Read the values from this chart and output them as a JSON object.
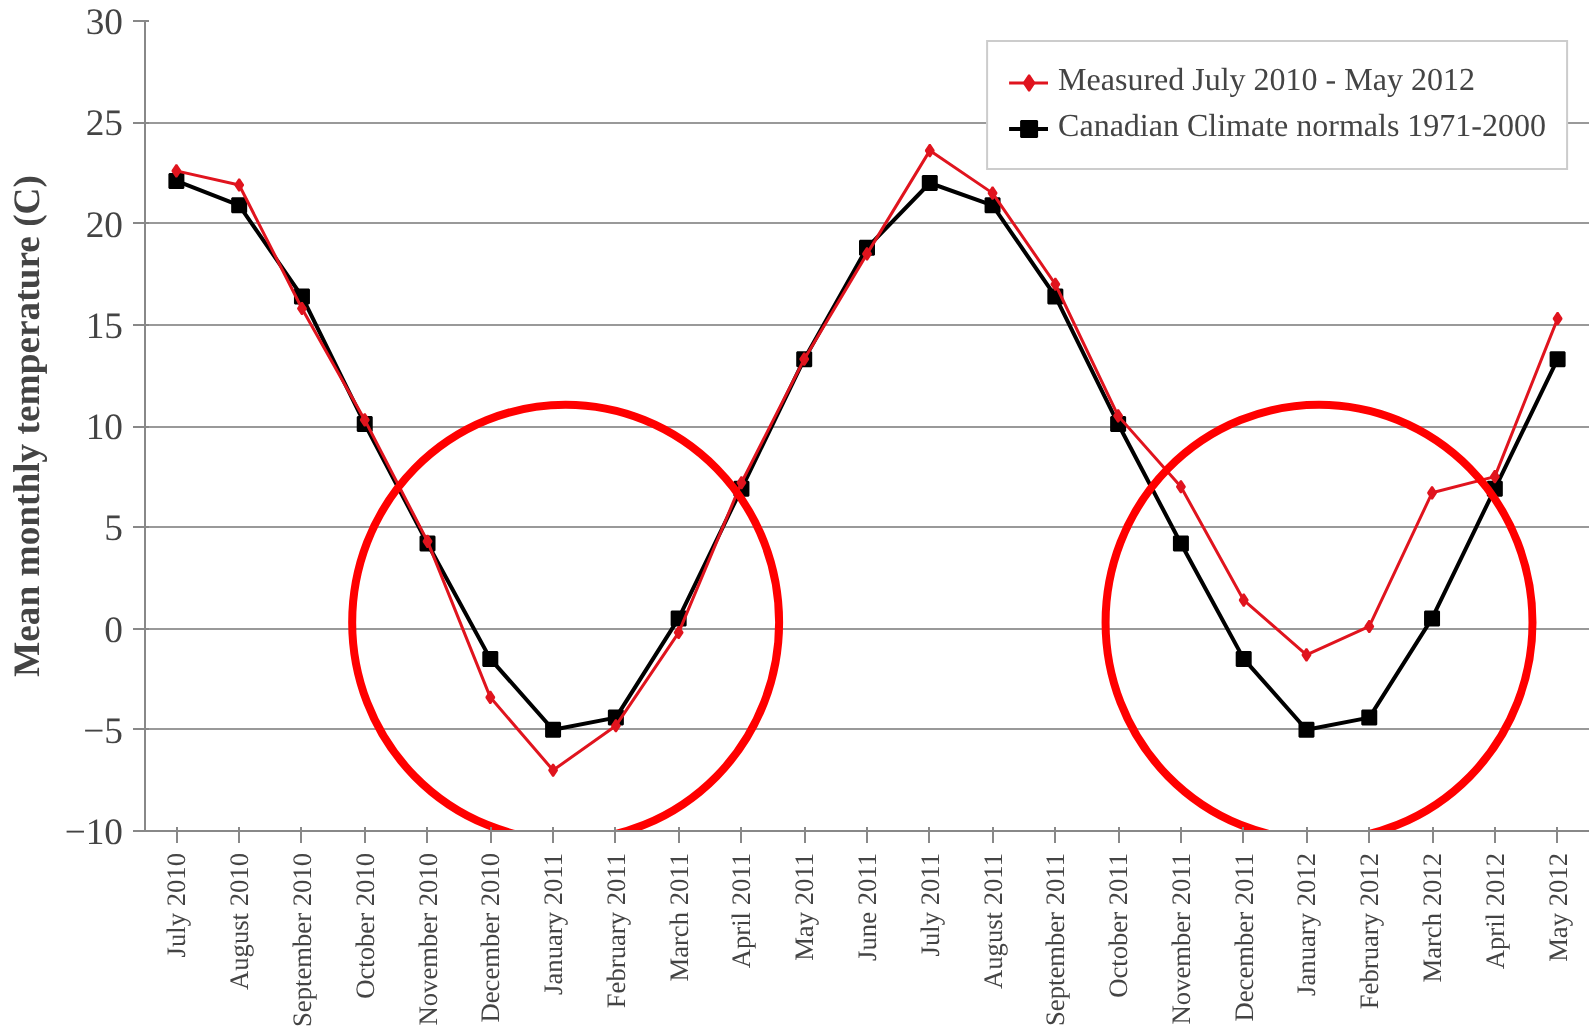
{
  "chart_data": {
    "type": "line",
    "ylabel": "Mean monthly temperature (C)",
    "categories": [
      "July 2010",
      "August 2010",
      "September 2010",
      "October 2010",
      "November 2010",
      "December 2010",
      "January 2011",
      "February 2011",
      "March 2011",
      "April 2011",
      "May 2011",
      "June 2011",
      "July 2011",
      "August 2011",
      "September 2011",
      "October 2011",
      "November 2011",
      "December 2011",
      "January 2012",
      "February 2012",
      "March 2012",
      "April 2012",
      "May 2012"
    ],
    "series": [
      {
        "name": "Measured July 2010 - May 2012",
        "color": "#e0141e",
        "marker": "diamond",
        "values": [
          22.6,
          21.9,
          15.8,
          10.3,
          4.3,
          -3.4,
          -7.0,
          -4.8,
          -0.2,
          7.2,
          13.3,
          18.5,
          23.6,
          21.5,
          17.0,
          10.5,
          7.0,
          1.4,
          -1.3,
          0.1,
          6.7,
          7.5,
          15.3
        ]
      },
      {
        "name": "Canadian Climate normals 1971-2000",
        "color": "#000000",
        "marker": "square",
        "values": [
          22.1,
          20.9,
          16.4,
          10.1,
          4.2,
          -1.5,
          -5.0,
          -4.4,
          0.5,
          6.9,
          13.3,
          18.8,
          22.0,
          20.9,
          16.4,
          10.1,
          4.2,
          -1.5,
          -5.0,
          -4.4,
          0.5,
          6.9,
          13.3
        ]
      }
    ],
    "ylim": [
      -10,
      30
    ],
    "yticks": [
      -10,
      -5,
      0,
      5,
      10,
      15,
      20,
      25,
      30
    ],
    "grid": "y",
    "legend": "top right",
    "line_style": "solid"
  }
}
